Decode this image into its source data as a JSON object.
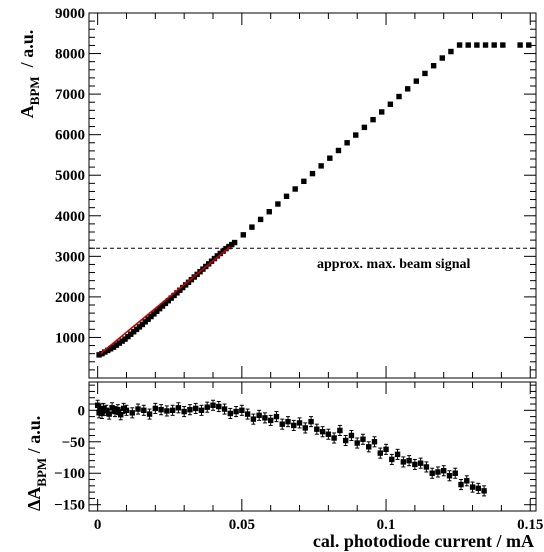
{
  "chart_data": [
    {
      "type": "scatter",
      "ylabel_main": "A",
      "ylabel_sub": "BPM",
      "ylabel_unit": "  / a.u.",
      "ylim": [
        0,
        9000
      ],
      "xlim": [
        -0.003,
        0.152
      ],
      "yticks": [
        1000,
        2000,
        3000,
        4000,
        5000,
        6000,
        7000,
        8000,
        9000
      ],
      "ytick_labels": [
        "1000",
        "2000",
        "3000",
        "4000",
        "5000",
        "6000",
        "7000",
        "8000",
        "9000"
      ],
      "grid": false,
      "annotation": {
        "text": "approx. max. beam signal",
        "y": 3200
      },
      "series": [
        {
          "marker": "square",
          "color": "#000000",
          "x": [
            0.0005,
            0.0015,
            0.0025,
            0.0035,
            0.0045,
            0.0055,
            0.0065,
            0.0075,
            0.0085,
            0.0095,
            0.0105,
            0.0115,
            0.0125,
            0.0135,
            0.0145,
            0.0155,
            0.0165,
            0.0175,
            0.0185,
            0.0195,
            0.0205,
            0.0215,
            0.0225,
            0.0235,
            0.0245,
            0.0255,
            0.0265,
            0.0275,
            0.0285,
            0.0295,
            0.0305,
            0.0315,
            0.0325,
            0.0335,
            0.0345,
            0.0355,
            0.0365,
            0.0375,
            0.0385,
            0.0395,
            0.0405,
            0.0415,
            0.0425,
            0.0435,
            0.0445,
            0.0455,
            0.0465,
            0.0475,
            0.0505,
            0.0535,
            0.0565,
            0.0595,
            0.0625,
            0.0655,
            0.0685,
            0.0715,
            0.0745,
            0.0775,
            0.0805,
            0.0835,
            0.0865,
            0.0895,
            0.0925,
            0.0955,
            0.0985,
            0.1015,
            0.1045,
            0.1075,
            0.1105,
            0.1135,
            0.1165,
            0.1195,
            0.1225,
            0.1255,
            0.1285,
            0.1315,
            0.1345,
            0.1375,
            0.1405,
            0.1465,
            0.1495
          ],
          "y": [
            570,
            600,
            640,
            680,
            720,
            760,
            810,
            860,
            910,
            960,
            1020,
            1080,
            1140,
            1200,
            1260,
            1320,
            1385,
            1450,
            1515,
            1580,
            1645,
            1710,
            1775,
            1840,
            1905,
            1970,
            2035,
            2100,
            2165,
            2230,
            2295,
            2360,
            2425,
            2490,
            2555,
            2620,
            2685,
            2750,
            2815,
            2880,
            2945,
            3010,
            3070,
            3130,
            3190,
            3240,
            3290,
            3340,
            3530,
            3720,
            3910,
            4100,
            4290,
            4480,
            4660,
            4850,
            5040,
            5230,
            5420,
            5610,
            5800,
            5990,
            6180,
            6370,
            6560,
            6750,
            6940,
            7130,
            7320,
            7510,
            7700,
            7890,
            8050,
            8210,
            8210,
            8210,
            8210,
            8210,
            8210,
            8210,
            8210
          ]
        },
        {
          "type": "line",
          "color": "#cc0000",
          "x": [
            0.001,
            0.046
          ],
          "y": [
            600,
            3240
          ]
        }
      ]
    },
    {
      "type": "scatter",
      "ylabel_main": "ΔA",
      "ylabel_sub": "BPM",
      "ylabel_unit": " / a.u.",
      "xlabel": "cal. photodiode current / mA",
      "ylim": [
        -160,
        45
      ],
      "xlim": [
        -0.003,
        0.152
      ],
      "yticks": [
        -150,
        -100,
        -50,
        0
      ],
      "ytick_labels": [
        "−150",
        "−100",
        "−50",
        "0"
      ],
      "xticks": [
        0,
        0.05,
        0.1,
        0.15
      ],
      "xtick_labels": [
        "0",
        "0.05",
        "0.1",
        "0.15"
      ],
      "grid": false,
      "series": [
        {
          "marker": "square",
          "color": "#000000",
          "error_bar": 8,
          "x": [
            0.0,
            0.0005,
            0.001,
            0.0015,
            0.002,
            0.003,
            0.004,
            0.005,
            0.006,
            0.007,
            0.008,
            0.009,
            0.01,
            0.012,
            0.014,
            0.016,
            0.018,
            0.02,
            0.022,
            0.024,
            0.026,
            0.028,
            0.03,
            0.032,
            0.034,
            0.036,
            0.038,
            0.04,
            0.042,
            0.044,
            0.046,
            0.048,
            0.05,
            0.052,
            0.054,
            0.056,
            0.058,
            0.06,
            0.062,
            0.064,
            0.066,
            0.068,
            0.07,
            0.072,
            0.074,
            0.076,
            0.078,
            0.08,
            0.082,
            0.084,
            0.086,
            0.088,
            0.09,
            0.092,
            0.094,
            0.096,
            0.098,
            0.1,
            0.102,
            0.104,
            0.106,
            0.108,
            0.11,
            0.112,
            0.114,
            0.116,
            0.118,
            0.12,
            0.122,
            0.124,
            0.126,
            0.128,
            0.13,
            0.132,
            0.134
          ],
          "y": [
            8,
            -4,
            2,
            -5,
            3,
            0,
            -6,
            4,
            -2,
            1,
            -7,
            3,
            0,
            -4,
            2,
            0,
            -6,
            3,
            1,
            -1,
            0,
            4,
            -2,
            1,
            3,
            0,
            5,
            8,
            6,
            2,
            -5,
            -2,
            0,
            -6,
            -14,
            -8,
            -12,
            -16,
            -10,
            -22,
            -18,
            -24,
            -20,
            -28,
            -18,
            -30,
            -34,
            -38,
            -44,
            -32,
            -48,
            -40,
            -52,
            -46,
            -58,
            -50,
            -68,
            -62,
            -78,
            -70,
            -82,
            -80,
            -86,
            -84,
            -90,
            -100,
            -98,
            -96,
            -104,
            -100,
            -118,
            -112,
            -122,
            -124,
            -128
          ]
        }
      ]
    }
  ]
}
